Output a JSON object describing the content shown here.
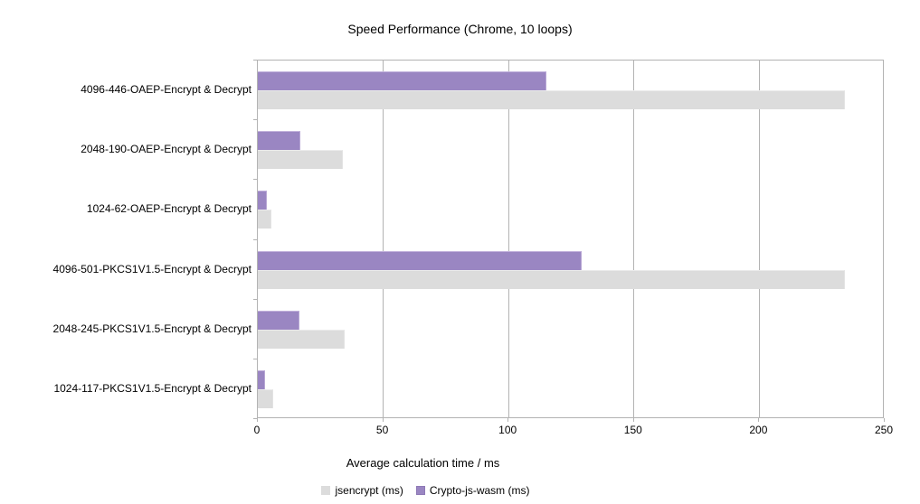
{
  "chart": {
    "background_color": "#ffffff",
    "axis_color": "#b3b3b3",
    "text_color": "#000000"
  },
  "chart_data": {
    "type": "bar",
    "orientation": "horizontal",
    "title": "Speed Performance (Chrome, 10 loops)",
    "xlabel": "Average calculation time / ms",
    "ylabel": "",
    "categories": [
      "4096-446-OAEP-Encrypt & Decrypt",
      "2048-190-OAEP-Encrypt & Decrypt",
      "1024-62-OAEP-Encrypt & Decrypt",
      "4096-501-PKCS1V1.5-Encrypt & Decrypt",
      "2048-245-PKCS1V1.5-Encrypt & Decrypt",
      "1024-117-PKCS1V1.5-Encrypt & Decrypt"
    ],
    "series": [
      {
        "name": "jsencrypt (ms)",
        "color": "#dcdcdc",
        "values": [
          234,
          34,
          5.5,
          234,
          34.5,
          6
        ]
      },
      {
        "name": "Crypto-js-wasm (ms)",
        "color": "#9a86c2",
        "values": [
          115,
          17,
          3.5,
          129,
          16.5,
          3
        ]
      }
    ],
    "x_ticks": [
      0,
      50,
      100,
      150,
      200,
      250
    ],
    "x_tick_labels": [
      "0",
      "50",
      "100",
      "150",
      "200",
      "250"
    ],
    "xlim": [
      0,
      250
    ],
    "grid": "vertical",
    "legend_position": "bottom",
    "bar_order_in_group_top_to_bottom": [
      "Crypto-js-wasm (ms)",
      "jsencrypt (ms)"
    ]
  }
}
